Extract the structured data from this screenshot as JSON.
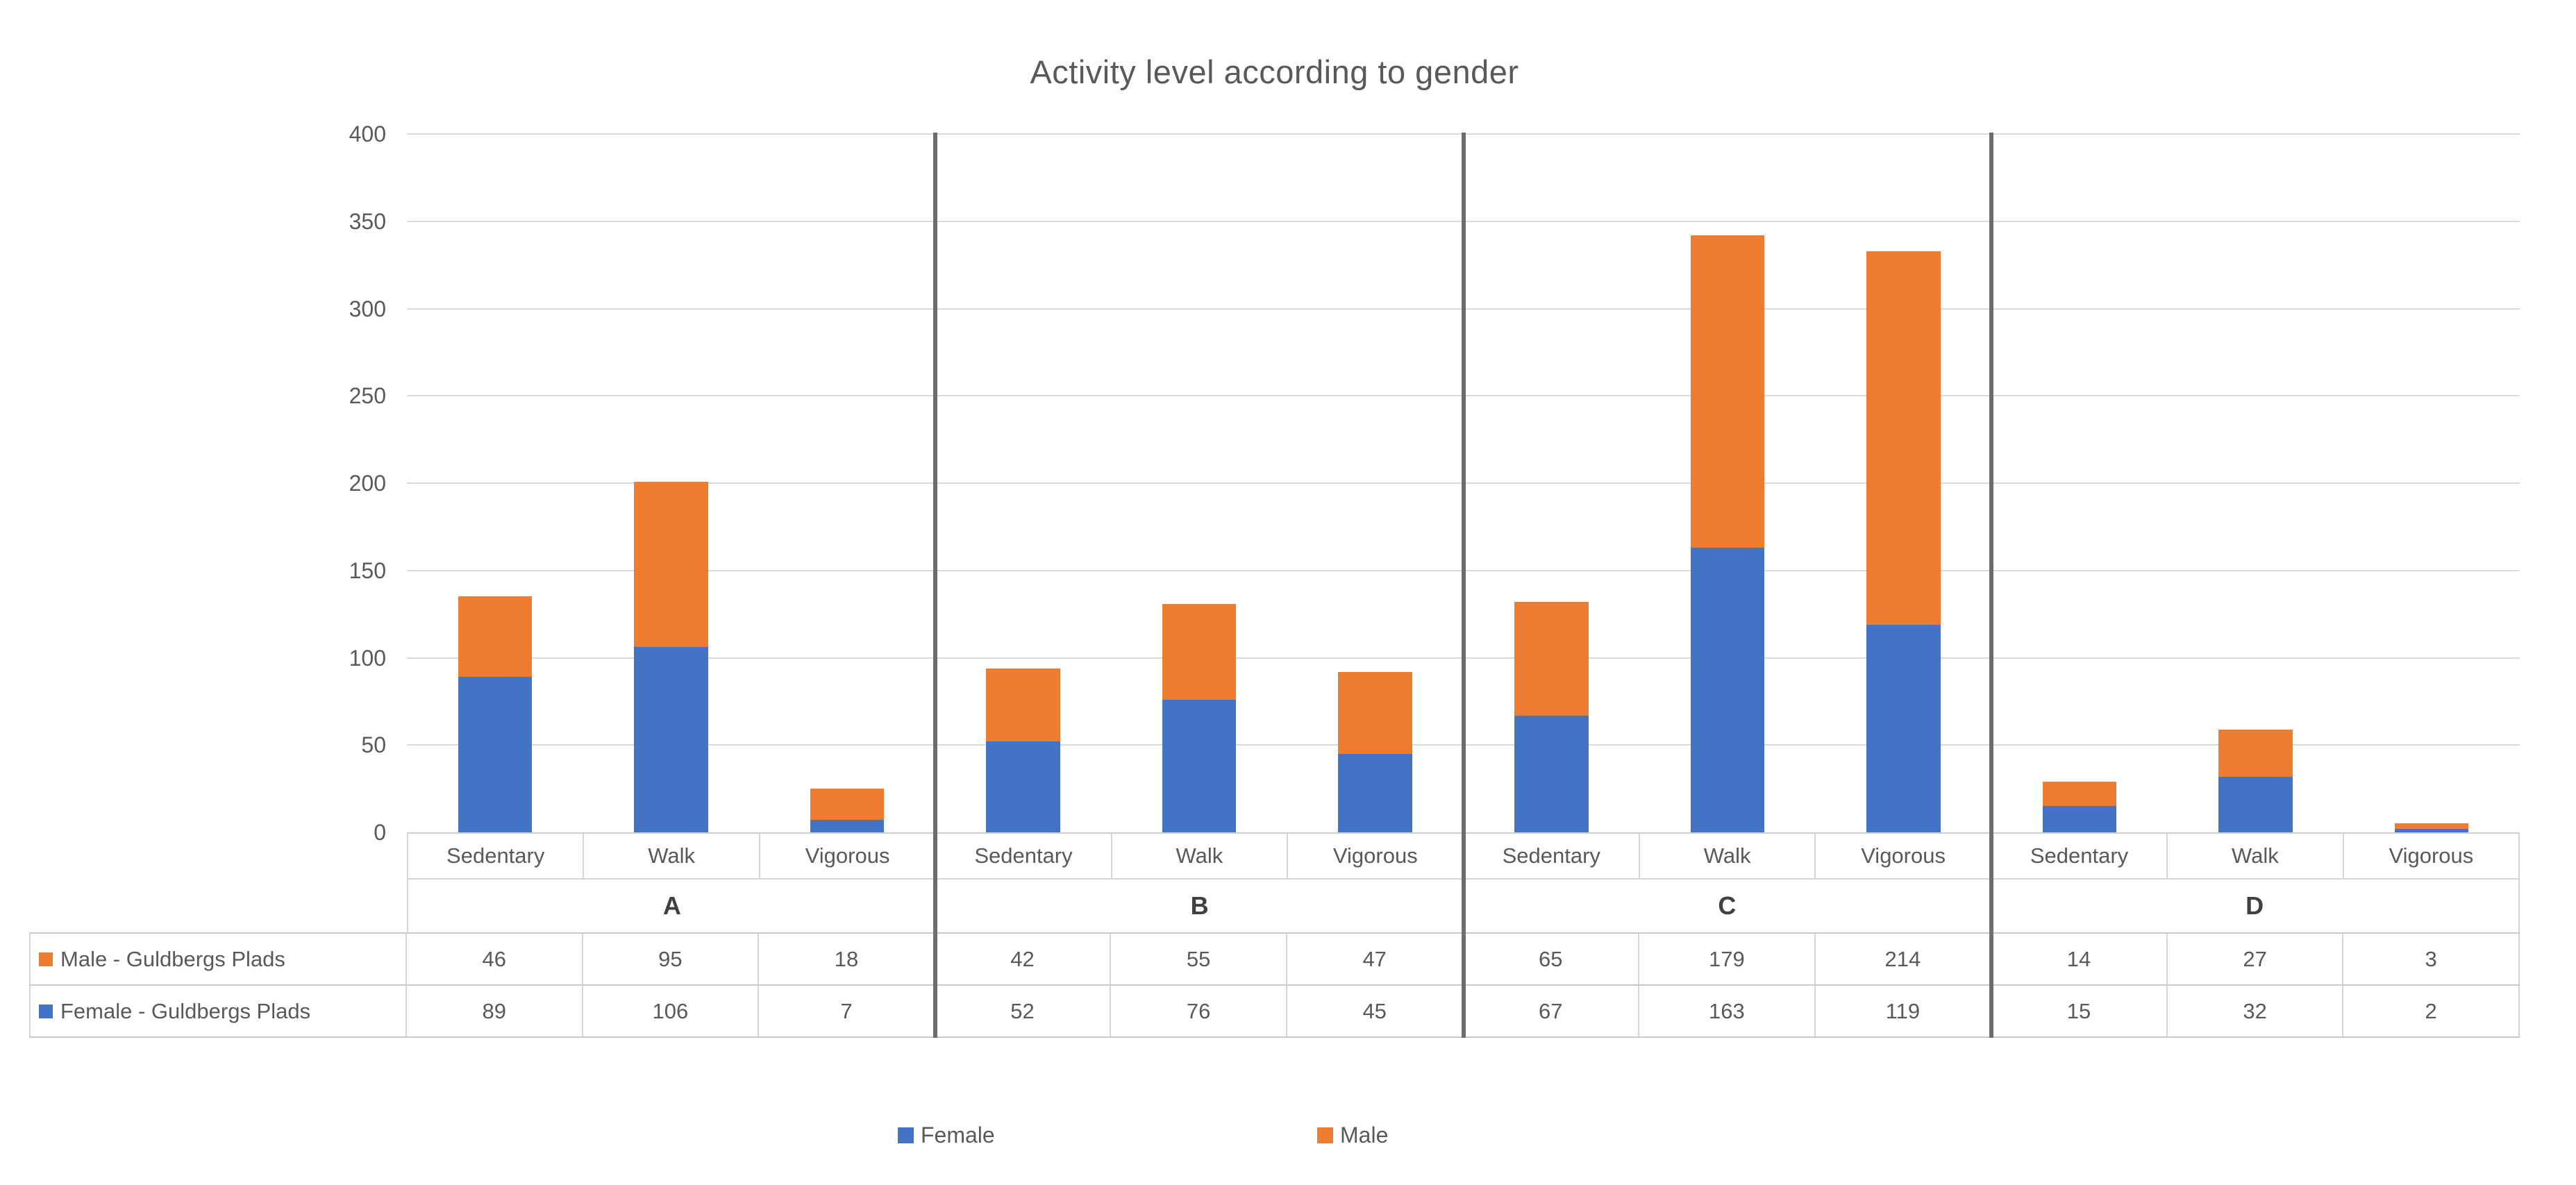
{
  "title": "Activity level according to gender",
  "colors": {
    "female": "#4472C4",
    "male": "#ED7D31",
    "gridline": "#D9D9D9",
    "table_border": "#D6D6D6",
    "group_separator": "#6D6D6D",
    "text": "#595959"
  },
  "chart_data": {
    "type": "bar",
    "stacked": true,
    "title": "Activity level according to gender",
    "groups": [
      "A",
      "B",
      "C",
      "D"
    ],
    "categories": [
      "Sedentary",
      "Walk",
      "Vigorous"
    ],
    "series": [
      {
        "name": "Female",
        "table_label": "Female - Guldbergs Plads",
        "color": "#4472C4",
        "values": [
          [
            89,
            106,
            7
          ],
          [
            52,
            76,
            45
          ],
          [
            67,
            163,
            119
          ],
          [
            15,
            32,
            2
          ]
        ]
      },
      {
        "name": "Male",
        "table_label": "Male - Guldbergs Plads",
        "color": "#ED7D31",
        "values": [
          [
            46,
            95,
            18
          ],
          [
            42,
            55,
            47
          ],
          [
            65,
            179,
            214
          ],
          [
            14,
            27,
            3
          ]
        ]
      }
    ],
    "table_row_order": [
      "Male",
      "Female"
    ],
    "ylim": [
      0,
      400
    ],
    "yticks": [
      0,
      50,
      100,
      150,
      200,
      250,
      300,
      350,
      400
    ],
    "grid": true,
    "legend": [
      "Female",
      "Male"
    ],
    "legend_position": "bottom"
  }
}
